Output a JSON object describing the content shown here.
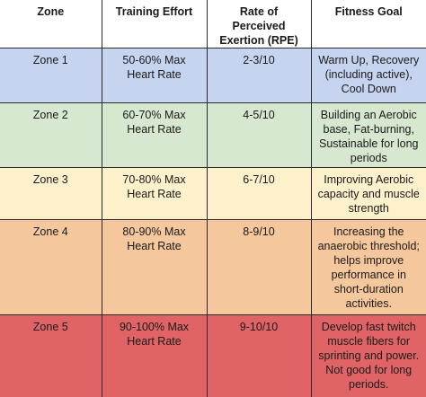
{
  "table": {
    "headers": [
      "Zone",
      "Training Effort",
      "Rate of Perceived Exertion (RPE)",
      "Fitness Goal"
    ],
    "rows": [
      [
        "Zone 1",
        "50-60% Max Heart Rate",
        "2-3/10",
        "Warm Up, Recovery (including active), Cool Down"
      ],
      [
        "Zone 2",
        "60-70% Max Heart Rate",
        "4-5/10",
        "Building an Aerobic base, Fat-burning, Sustainable for long periods"
      ],
      [
        "Zone 3",
        "70-80% Max Heart Rate",
        "6-7/10",
        "Improving Aerobic capacity and muscle strength"
      ],
      [
        "Zone 4",
        "80-90% Max Heart Rate",
        "8-9/10",
        "Increasing the anaerobic threshold; helps improve performance in short-duration activities."
      ],
      [
        "Zone 5",
        "90-100% Max Heart Rate",
        "9-10/10",
        "Develop fast twitch muscle fibers for sprinting and power. Not good for long periods."
      ]
    ]
  },
  "colors": {
    "zone1": "#c6d4f0",
    "zone2": "#d6e8cf",
    "zone3": "#fdf1cc",
    "zone4": "#f5c79d",
    "zone5": "#e06466"
  }
}
